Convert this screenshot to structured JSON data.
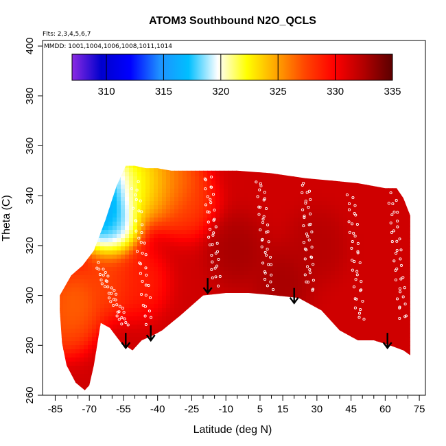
{
  "chart_data": {
    "type": "heatmap",
    "title": "ATOM3 Southbound N2O_QCLS",
    "flights_note": "Flts: 2,3,4,5,6,7",
    "mmdd_note": "MMDD: 1001,1004,1006,1008,1011,1014",
    "xlabel": "Latitude (deg N)",
    "ylabel": "Theta (C)",
    "xlim": [
      -88,
      85
    ],
    "ylim": [
      260,
      402
    ],
    "x_ticks": [
      -85,
      -70,
      -55,
      -40,
      -25,
      -10,
      5,
      15,
      30,
      45,
      60,
      75
    ],
    "y_ticks": [
      260,
      280,
      300,
      320,
      340,
      360,
      380,
      400
    ],
    "colorbar": {
      "min": 307,
      "max": 335,
      "ticks": [
        310,
        315,
        320,
        325,
        330,
        335
      ],
      "colors": [
        "#8b2be2",
        "#0000cd",
        "#0000ff",
        "#1e90ff",
        "#00bfff",
        "#ffffff",
        "#ffff00",
        "#ffa500",
        "#ff4500",
        "#ff0000",
        "#b30000",
        "#5a0000"
      ]
    },
    "field_top_boundary": [
      [
        -78,
        308
      ],
      [
        -73,
        312
      ],
      [
        -68,
        318
      ],
      [
        -63,
        330
      ],
      [
        -58,
        344
      ],
      [
        -54,
        352
      ],
      [
        -50,
        352
      ],
      [
        -45,
        351
      ],
      [
        -40,
        351
      ],
      [
        -34,
        350
      ],
      [
        -27,
        350
      ],
      [
        -18,
        350
      ],
      [
        -5,
        350
      ],
      [
        10,
        349
      ],
      [
        25,
        347
      ],
      [
        37,
        346
      ],
      [
        48,
        345
      ],
      [
        60,
        343
      ],
      [
        65,
        343
      ],
      [
        68,
        339
      ],
      [
        71,
        332
      ]
    ],
    "field_bottom_boundary": [
      [
        71,
        276
      ],
      [
        68,
        278
      ],
      [
        62,
        280
      ],
      [
        55,
        282
      ],
      [
        48,
        282
      ],
      [
        40,
        286
      ],
      [
        32,
        294
      ],
      [
        22,
        299
      ],
      [
        12,
        300
      ],
      [
        0,
        301
      ],
      [
        -10,
        301
      ],
      [
        -20,
        300
      ],
      [
        -25,
        296
      ],
      [
        -30,
        292
      ],
      [
        -38,
        286
      ],
      [
        -42,
        284
      ],
      [
        -47,
        282
      ],
      [
        -51,
        278
      ],
      [
        -56,
        281
      ],
      [
        -61,
        287
      ],
      [
        -65,
        289
      ],
      [
        -68,
        272
      ],
      [
        -70,
        264
      ],
      [
        -72,
        262
      ],
      [
        -76,
        265
      ],
      [
        -80,
        272
      ],
      [
        -82,
        281
      ],
      [
        -83,
        294
      ],
      [
        -83,
        300
      ]
    ],
    "field_regions": [
      {
        "kind": "base",
        "value": 331.5
      },
      {
        "kind": "blob",
        "lat": -66,
        "theta": 334,
        "value": 313
      },
      {
        "kind": "blob",
        "lat": -62,
        "theta": 343,
        "value": 314
      },
      {
        "kind": "blob",
        "lat": -60,
        "theta": 328,
        "value": 317
      },
      {
        "kind": "blob",
        "lat": -52,
        "theta": 344,
        "value": 320
      },
      {
        "kind": "blob",
        "lat": -45,
        "theta": 346,
        "value": 322
      },
      {
        "kind": "blob",
        "lat": -38,
        "theta": 343,
        "value": 324
      },
      {
        "kind": "blob",
        "lat": -32,
        "theta": 345,
        "value": 326
      },
      {
        "kind": "blob",
        "lat": -27,
        "theta": 337,
        "value": 327.5
      },
      {
        "kind": "blob",
        "lat": -76,
        "theta": 298,
        "value": 326
      },
      {
        "kind": "blob",
        "lat": -80,
        "theta": 290,
        "value": 326.5
      },
      {
        "kind": "blob",
        "lat": -62,
        "theta": 305,
        "value": 327
      },
      {
        "kind": "blob",
        "lat": -48,
        "theta": 305,
        "value": 328.5
      },
      {
        "kind": "blob",
        "lat": -5,
        "theta": 318,
        "value": 333
      },
      {
        "kind": "blob",
        "lat": 15,
        "theta": 305,
        "value": 333
      },
      {
        "kind": "blob",
        "lat": 30,
        "theta": 320,
        "value": 332.5
      }
    ],
    "flight_arrows": [
      [
        -54,
        285
      ],
      [
        -43,
        288
      ],
      [
        -18,
        307
      ],
      [
        20,
        303
      ],
      [
        61,
        285
      ]
    ],
    "sample_tracks": [
      {
        "lat0": -66,
        "lat1": -54,
        "theta0": 312,
        "theta1": 288
      },
      {
        "lat0": -50,
        "lat1": -44,
        "theta0": 345,
        "theta1": 289
      },
      {
        "lat0": -18,
        "lat1": -14,
        "theta0": 348,
        "theta1": 305
      },
      {
        "lat0": 5,
        "lat1": 9,
        "theta0": 346,
        "theta1": 303
      },
      {
        "lat0": 25,
        "lat1": 27,
        "theta0": 345,
        "theta1": 302
      },
      {
        "lat0": 45,
        "lat1": 49,
        "theta0": 340,
        "theta1": 290
      },
      {
        "lat0": 63,
        "lat1": 68,
        "theta0": 340,
        "theta1": 290
      }
    ]
  }
}
